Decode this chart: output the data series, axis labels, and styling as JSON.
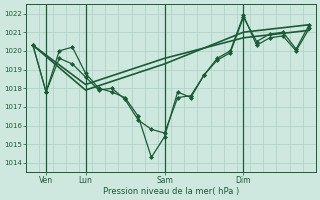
{
  "bg_color": "#cfe8df",
  "grid_color": "#b0d4c8",
  "line_color": "#1a5c35",
  "marker_color": "#1a5c35",
  "ylabel_ticks": [
    1014,
    1015,
    1016,
    1017,
    1018,
    1019,
    1020,
    1021,
    1022
  ],
  "ylim": [
    1013.5,
    1022.5
  ],
  "xlabel": "Pression niveau de la mer( hPa )",
  "day_labels": [
    "Ven",
    "Lun",
    "Sam",
    "Dim"
  ],
  "day_positions": [
    1,
    4,
    10,
    16
  ],
  "day_vline_positions": [
    1,
    4,
    10,
    16
  ],
  "xlim": [
    -0.5,
    21.5
  ],
  "series": [
    {
      "x": [
        0,
        1,
        2,
        3,
        4,
        5,
        6,
        7,
        8,
        9,
        10,
        11,
        12,
        13,
        14,
        15,
        16,
        17,
        18,
        19,
        20,
        21
      ],
      "y": [
        1020.3,
        1017.8,
        1020.0,
        1020.2,
        1018.8,
        1018.0,
        1017.8,
        1017.5,
        1016.5,
        1014.3,
        1015.4,
        1017.8,
        1017.5,
        1018.7,
        1019.5,
        1019.9,
        1021.8,
        1020.5,
        1020.9,
        1021.0,
        1020.1,
        1021.4
      ],
      "with_markers": true
    },
    {
      "x": [
        0,
        1,
        2,
        3,
        4,
        5,
        6,
        7,
        8,
        9,
        10,
        11,
        12,
        13,
        14,
        15,
        16,
        17,
        18,
        19,
        20,
        21
      ],
      "y": [
        1020.3,
        1017.8,
        1019.6,
        1019.3,
        1018.6,
        1017.9,
        1018.0,
        1017.4,
        1016.3,
        1015.8,
        1015.6,
        1017.5,
        1017.6,
        1018.7,
        1019.6,
        1020.0,
        1021.9,
        1020.3,
        1020.7,
        1020.8,
        1020.0,
        1021.2
      ],
      "with_markers": true
    },
    {
      "x": [
        0,
        4,
        10,
        16,
        21
      ],
      "y": [
        1020.3,
        1017.9,
        1019.3,
        1021.0,
        1021.4
      ],
      "with_markers": false
    },
    {
      "x": [
        0,
        4,
        10,
        16,
        21
      ],
      "y": [
        1020.3,
        1018.2,
        1019.6,
        1020.7,
        1021.1
      ],
      "with_markers": false
    }
  ]
}
